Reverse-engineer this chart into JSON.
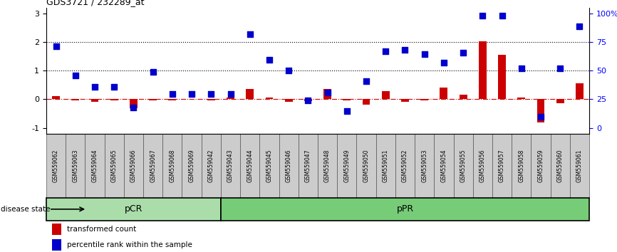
{
  "title": "GDS3721 / 232289_at",
  "samples": [
    "GSM559062",
    "GSM559063",
    "GSM559064",
    "GSM559065",
    "GSM559066",
    "GSM559067",
    "GSM559068",
    "GSM559069",
    "GSM559042",
    "GSM559043",
    "GSM559044",
    "GSM559045",
    "GSM559046",
    "GSM559047",
    "GSM559048",
    "GSM559049",
    "GSM559050",
    "GSM559051",
    "GSM559052",
    "GSM559053",
    "GSM559054",
    "GSM559055",
    "GSM559056",
    "GSM559057",
    "GSM559058",
    "GSM559059",
    "GSM559060",
    "GSM559061"
  ],
  "transformed_count": [
    0.12,
    -0.05,
    -0.08,
    -0.05,
    -0.32,
    -0.05,
    -0.05,
    0.02,
    -0.05,
    0.05,
    0.35,
    0.05,
    -0.1,
    -0.07,
    0.35,
    -0.05,
    -0.2,
    0.28,
    -0.1,
    -0.05,
    0.4,
    0.15,
    2.02,
    1.55,
    0.05,
    -0.8,
    -0.15,
    0.55
  ],
  "percentile_rank": [
    1.85,
    0.83,
    0.42,
    0.42,
    -0.28,
    0.95,
    0.18,
    0.18,
    0.18,
    0.18,
    2.28,
    1.38,
    1.0,
    -0.05,
    0.22,
    -0.42,
    0.62,
    1.68,
    1.72,
    1.58,
    1.28,
    1.62,
    2.92,
    2.92,
    1.08,
    -0.62,
    1.08,
    2.55
  ],
  "pCR_count": 9,
  "pPR_count": 19,
  "bar_color": "#cc0000",
  "dot_color": "#0000cc",
  "left_yticks": [
    -1,
    0,
    1,
    2,
    3
  ],
  "right_yticks": [
    0,
    25,
    50,
    75,
    100
  ],
  "right_ylabel_pct": [
    "0",
    "25",
    "50",
    "75",
    "100%"
  ],
  "ylim": [
    -1.2,
    3.2
  ],
  "background_color": "#ffffff",
  "legend_label_bar": "transformed count",
  "legend_label_dot": "percentile rank within the sample",
  "disease_state_label": "disease state",
  "pCR_label": "pCR",
  "pPR_label": "pPR",
  "pCR_color": "#aaddaa",
  "pPR_color": "#77cc77",
  "xticklabel_bg": "#cccccc",
  "hline_color": "#cc0000",
  "dotted_color": "#000000"
}
